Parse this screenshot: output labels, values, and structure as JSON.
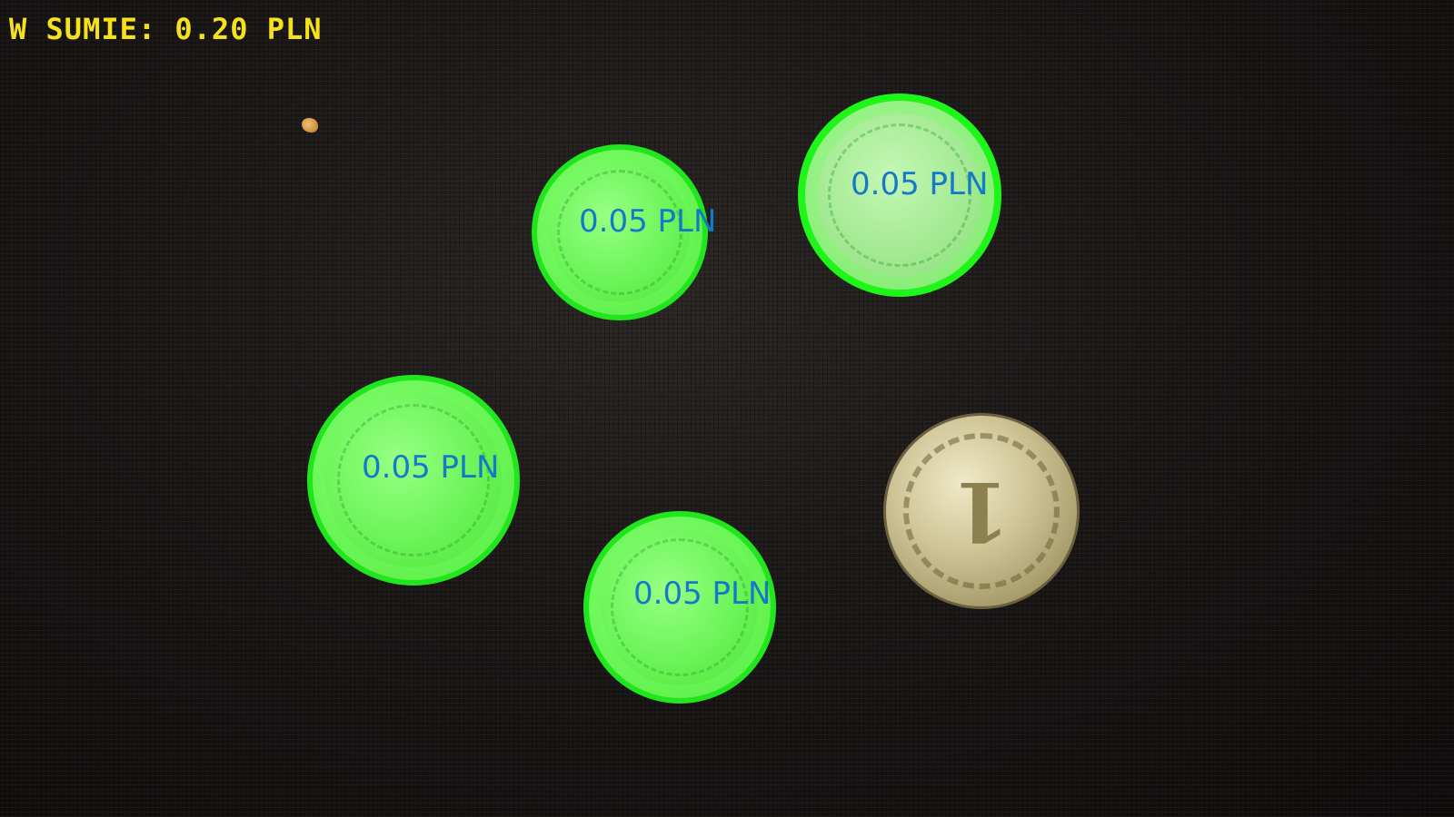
{
  "overlay": {
    "total_text": "W SUMIE: 0.20 PLN",
    "total_color": "#f5e21a",
    "label_color": "#1479c7",
    "highlight_color": "#22e61d"
  },
  "coins": [
    {
      "label": "0.05 PLN",
      "detected": true
    },
    {
      "label": "0.05 PLN",
      "detected": true
    },
    {
      "label": "0.05 PLN",
      "detected": true
    },
    {
      "label": "0.05 PLN",
      "detected": true
    },
    {
      "label": "",
      "detected": false,
      "face_digit": "1"
    }
  ]
}
